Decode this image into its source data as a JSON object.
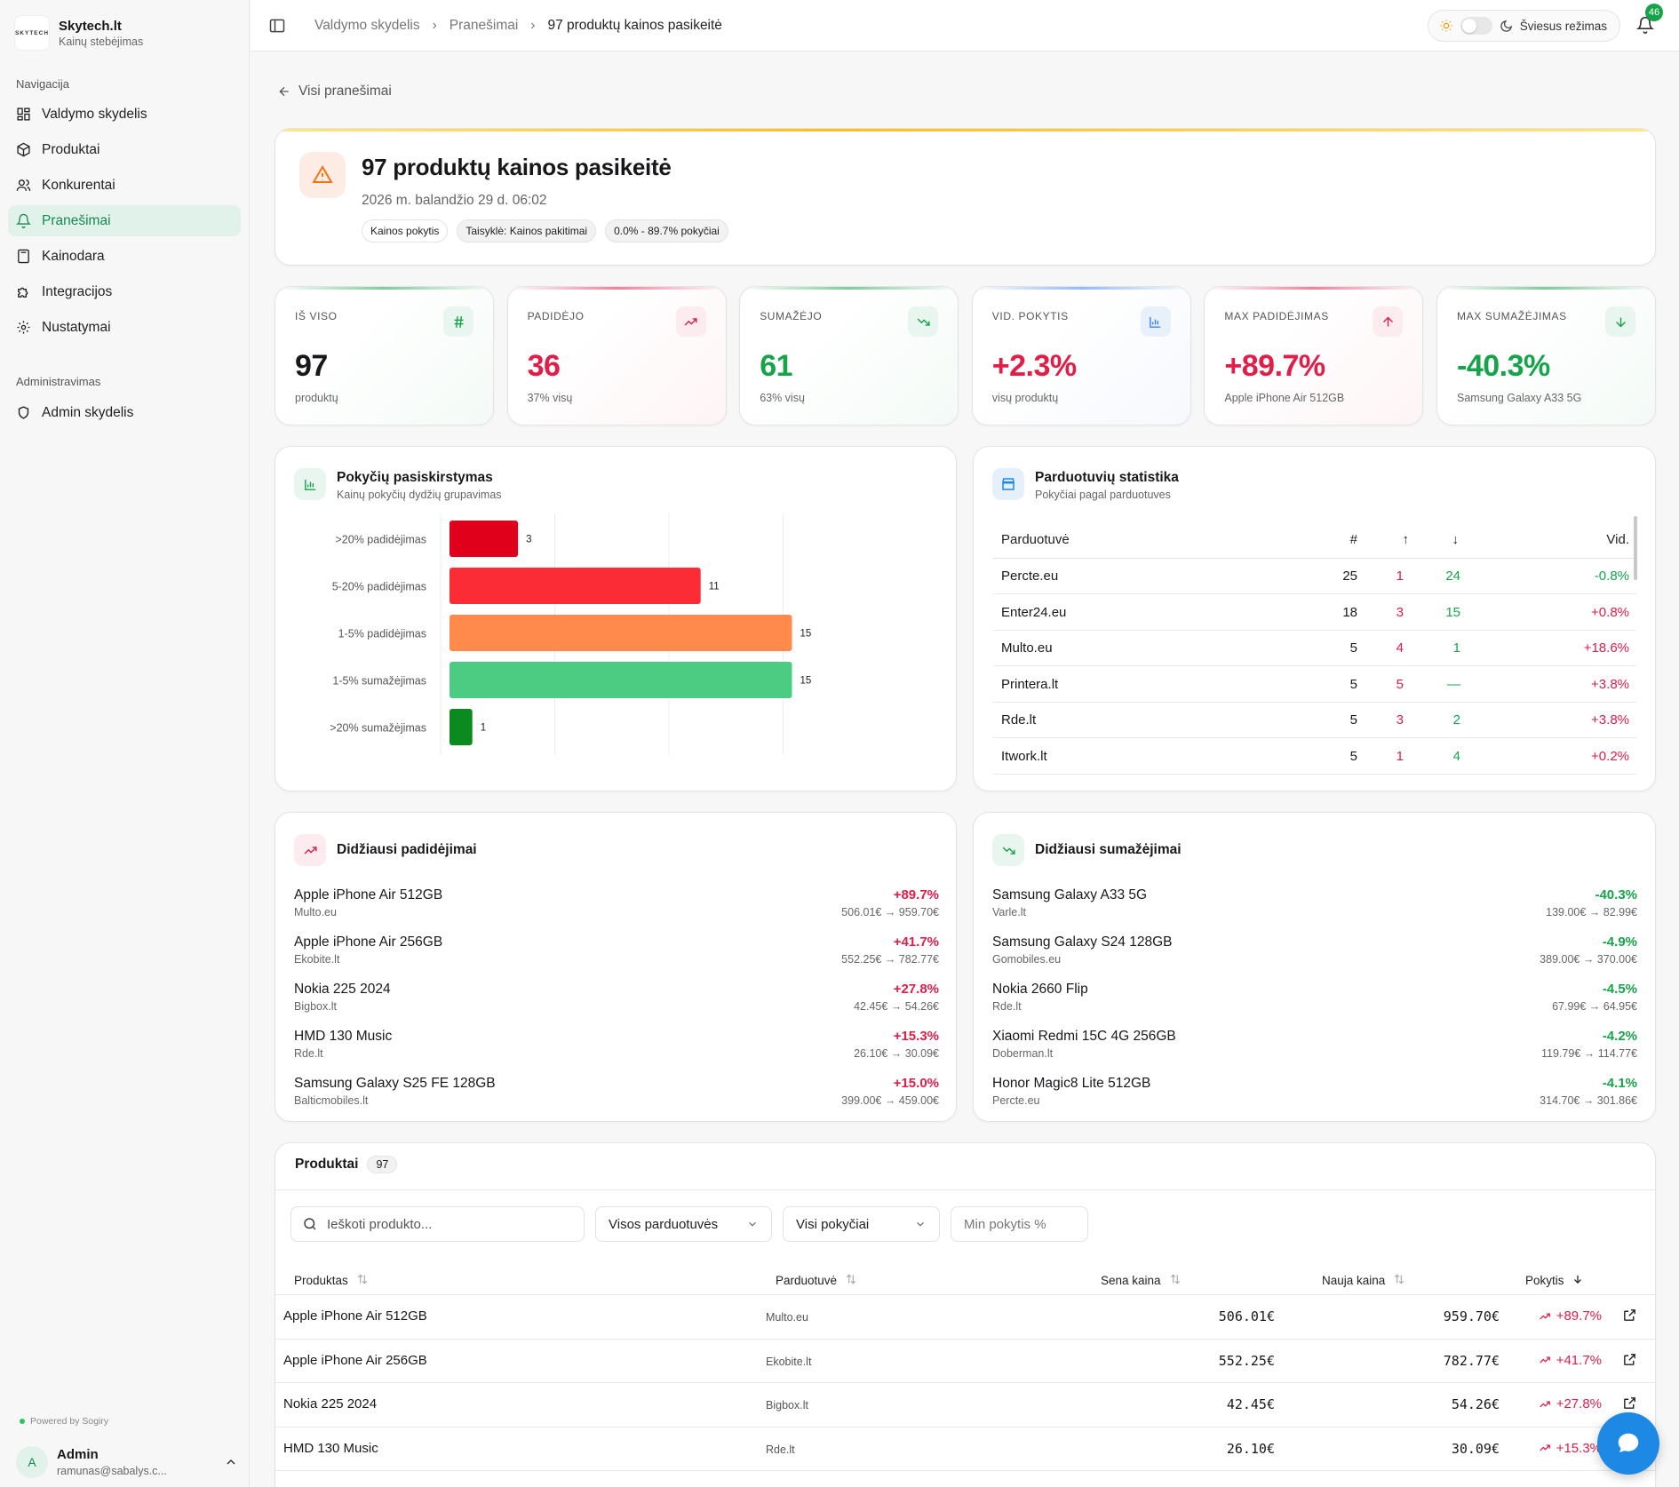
{
  "brand": {
    "logo_text": "SKYTECH",
    "name": "Skytech.lt",
    "subtitle": "Kainų stebėjimas"
  },
  "nav": {
    "section_label": "Navigacija",
    "items": [
      {
        "label": "Valdymo skydelis",
        "icon": "dashboard-icon"
      },
      {
        "label": "Produktai",
        "icon": "box-icon"
      },
      {
        "label": "Konkurentai",
        "icon": "users-icon"
      },
      {
        "label": "Pranešimai",
        "icon": "bell-icon",
        "active": true
      },
      {
        "label": "Kainodara",
        "icon": "calculator-icon"
      },
      {
        "label": "Integracijos",
        "icon": "puzzle-icon"
      },
      {
        "label": "Nustatymai",
        "icon": "gear-icon"
      }
    ],
    "admin_label": "Administravimas",
    "admin_items": [
      {
        "label": "Admin skydelis",
        "icon": "shield-icon"
      }
    ]
  },
  "powered": "Powered by Sogiry",
  "user": {
    "initial": "A",
    "name": "Admin",
    "email": "ramunas@sabalys.c..."
  },
  "breadcrumb": [
    "Valdymo skydelis",
    "Pranešimai",
    "97 produktų kainos pasikeitė"
  ],
  "theme": {
    "label": "Šviesus režimas"
  },
  "notifications": {
    "count": "46"
  },
  "back_link": "Visi pranešimai",
  "alert": {
    "title": "97 produktų kainos pasikeitė",
    "date": "2026 m. balandžio 29 d. 06:02",
    "tags": [
      "Kainos pokytis",
      "Taisyklė: Kainos pakitimai",
      "0.0% - 89.7% pokyčiai"
    ]
  },
  "stats": [
    {
      "label": "IŠ VISO",
      "value": "97",
      "sub": "produktų",
      "color": "#18181b",
      "icon": "hash-icon",
      "accent": "#16a34a"
    },
    {
      "label": "PADIDĖJO",
      "value": "36",
      "sub": "37% visų",
      "color": "#e11d48",
      "icon": "trending-up-icon",
      "accent": "#e11d48"
    },
    {
      "label": "SUMAŽĖJO",
      "value": "61",
      "sub": "63% visų",
      "color": "#16a34a",
      "icon": "trending-down-icon",
      "accent": "#16a34a"
    },
    {
      "label": "VID. POKYTIS",
      "value": "+2.3%",
      "sub": "visų produktų",
      "color": "#e11d48",
      "icon": "bar-chart-icon",
      "accent": "#3b82f6"
    },
    {
      "label": "MAX PADIDĖJIMAS",
      "value": "+89.7%",
      "sub": "Apple iPhone Air 512GB",
      "color": "#e11d48",
      "icon": "arrow-up-icon",
      "accent": "#e11d48"
    },
    {
      "label": "MAX SUMAŽĖJIMAS",
      "value": "-40.3%",
      "sub": "Samsung Galaxy A33 5G",
      "color": "#16a34a",
      "icon": "arrow-down-icon",
      "accent": "#16a34a"
    }
  ],
  "distribution": {
    "title": "Pokyčių pasiskirstymas",
    "subtitle": "Kainų pokyčių dydžių grupavimas"
  },
  "chart_data": {
    "type": "bar",
    "orientation": "horizontal",
    "categories": [
      ">20% padidėjimas",
      "5-20% padidėjimas",
      "1-5% padidėjimas",
      "1-5% sumažėjimas",
      ">20% sumažėjimas"
    ],
    "values": [
      3,
      11,
      15,
      15,
      1
    ],
    "colors": [
      "#e0001b",
      "#fb2c36",
      "#ff8a4c",
      "#4ccb83",
      "#0a8a1f"
    ],
    "xlim": [
      0,
      16
    ],
    "grid": true
  },
  "shops": {
    "title": "Parduotuvių statistika",
    "subtitle": "Pokyčiai pagal parduotuves",
    "columns": [
      "Parduotuvė",
      "#",
      "↑",
      "↓",
      "Vid."
    ],
    "rows": [
      {
        "name": "Percte.eu",
        "count": "25",
        "up": "1",
        "down": "24",
        "avg": "-0.8%",
        "avg_dir": "down"
      },
      {
        "name": "Enter24.eu",
        "count": "18",
        "up": "3",
        "down": "15",
        "avg": "+0.8%",
        "avg_dir": "up"
      },
      {
        "name": "Multo.eu",
        "count": "5",
        "up": "4",
        "down": "1",
        "avg": "+18.6%",
        "avg_dir": "up"
      },
      {
        "name": "Printera.lt",
        "count": "5",
        "up": "5",
        "down": "—",
        "avg": "+3.8%",
        "avg_dir": "up"
      },
      {
        "name": "Rde.lt",
        "count": "5",
        "up": "3",
        "down": "2",
        "avg": "+3.8%",
        "avg_dir": "up"
      },
      {
        "name": "Itwork.lt",
        "count": "5",
        "up": "1",
        "down": "4",
        "avg": "+0.2%",
        "avg_dir": "up"
      }
    ]
  },
  "increases": {
    "title": "Didžiausi padidėjimai",
    "items": [
      {
        "name": "Apple iPhone Air 512GB",
        "shop": "Multo.eu",
        "pct": "+89.7%",
        "prices": "506.01€ → 959.70€"
      },
      {
        "name": "Apple iPhone Air 256GB",
        "shop": "Ekobite.lt",
        "pct": "+41.7%",
        "prices": "552.25€ → 782.77€"
      },
      {
        "name": "Nokia 225 2024",
        "shop": "Bigbox.lt",
        "pct": "+27.8%",
        "prices": "42.45€ → 54.26€"
      },
      {
        "name": "HMD 130 Music",
        "shop": "Rde.lt",
        "pct": "+15.3%",
        "prices": "26.10€ → 30.09€"
      },
      {
        "name": "Samsung Galaxy S25 FE 128GB",
        "shop": "Balticmobiles.lt",
        "pct": "+15.0%",
        "prices": "399.00€ → 459.00€"
      }
    ]
  },
  "decreases": {
    "title": "Didžiausi sumažėjimai",
    "items": [
      {
        "name": "Samsung Galaxy A33 5G",
        "shop": "Varle.lt",
        "pct": "-40.3%",
        "prices": "139.00€ → 82.99€"
      },
      {
        "name": "Samsung Galaxy S24 128GB",
        "shop": "Gomobiles.eu",
        "pct": "-4.9%",
        "prices": "389.00€ → 370.00€"
      },
      {
        "name": "Nokia 2660 Flip",
        "shop": "Rde.lt",
        "pct": "-4.5%",
        "prices": "67.99€ → 64.95€"
      },
      {
        "name": "Xiaomi Redmi 15C 4G 256GB",
        "shop": "Doberman.lt",
        "pct": "-4.2%",
        "prices": "119.79€ → 114.77€"
      },
      {
        "name": "Honor Magic8 Lite 512GB",
        "shop": "Percte.eu",
        "pct": "-4.1%",
        "prices": "314.70€ → 301.86€"
      }
    ]
  },
  "products": {
    "title": "Produktai",
    "count": "97",
    "search_placeholder": "Ieškoti produkto...",
    "shop_filter": "Visos parduotuvės",
    "change_filter": "Visi pokyčiai",
    "min_placeholder": "Min pokytis %",
    "columns": [
      "Produktas",
      "Parduotuvė",
      "Sena kaina",
      "Nauja kaina",
      "Pokytis"
    ],
    "rows": [
      {
        "name": "Apple iPhone Air 512GB",
        "shop": "Multo.eu",
        "old": "506.01€",
        "new": "959.70€",
        "pct": "+89.7%"
      },
      {
        "name": "Apple iPhone Air 256GB",
        "shop": "Ekobite.lt",
        "old": "552.25€",
        "new": "782.77€",
        "pct": "+41.7%"
      },
      {
        "name": "Nokia 225 2024",
        "shop": "Bigbox.lt",
        "old": "42.45€",
        "new": "54.26€",
        "pct": "+27.8%"
      },
      {
        "name": "HMD 130 Music",
        "shop": "Rde.lt",
        "old": "26.10€",
        "new": "30.09€",
        "pct": "+15.3%"
      }
    ]
  }
}
